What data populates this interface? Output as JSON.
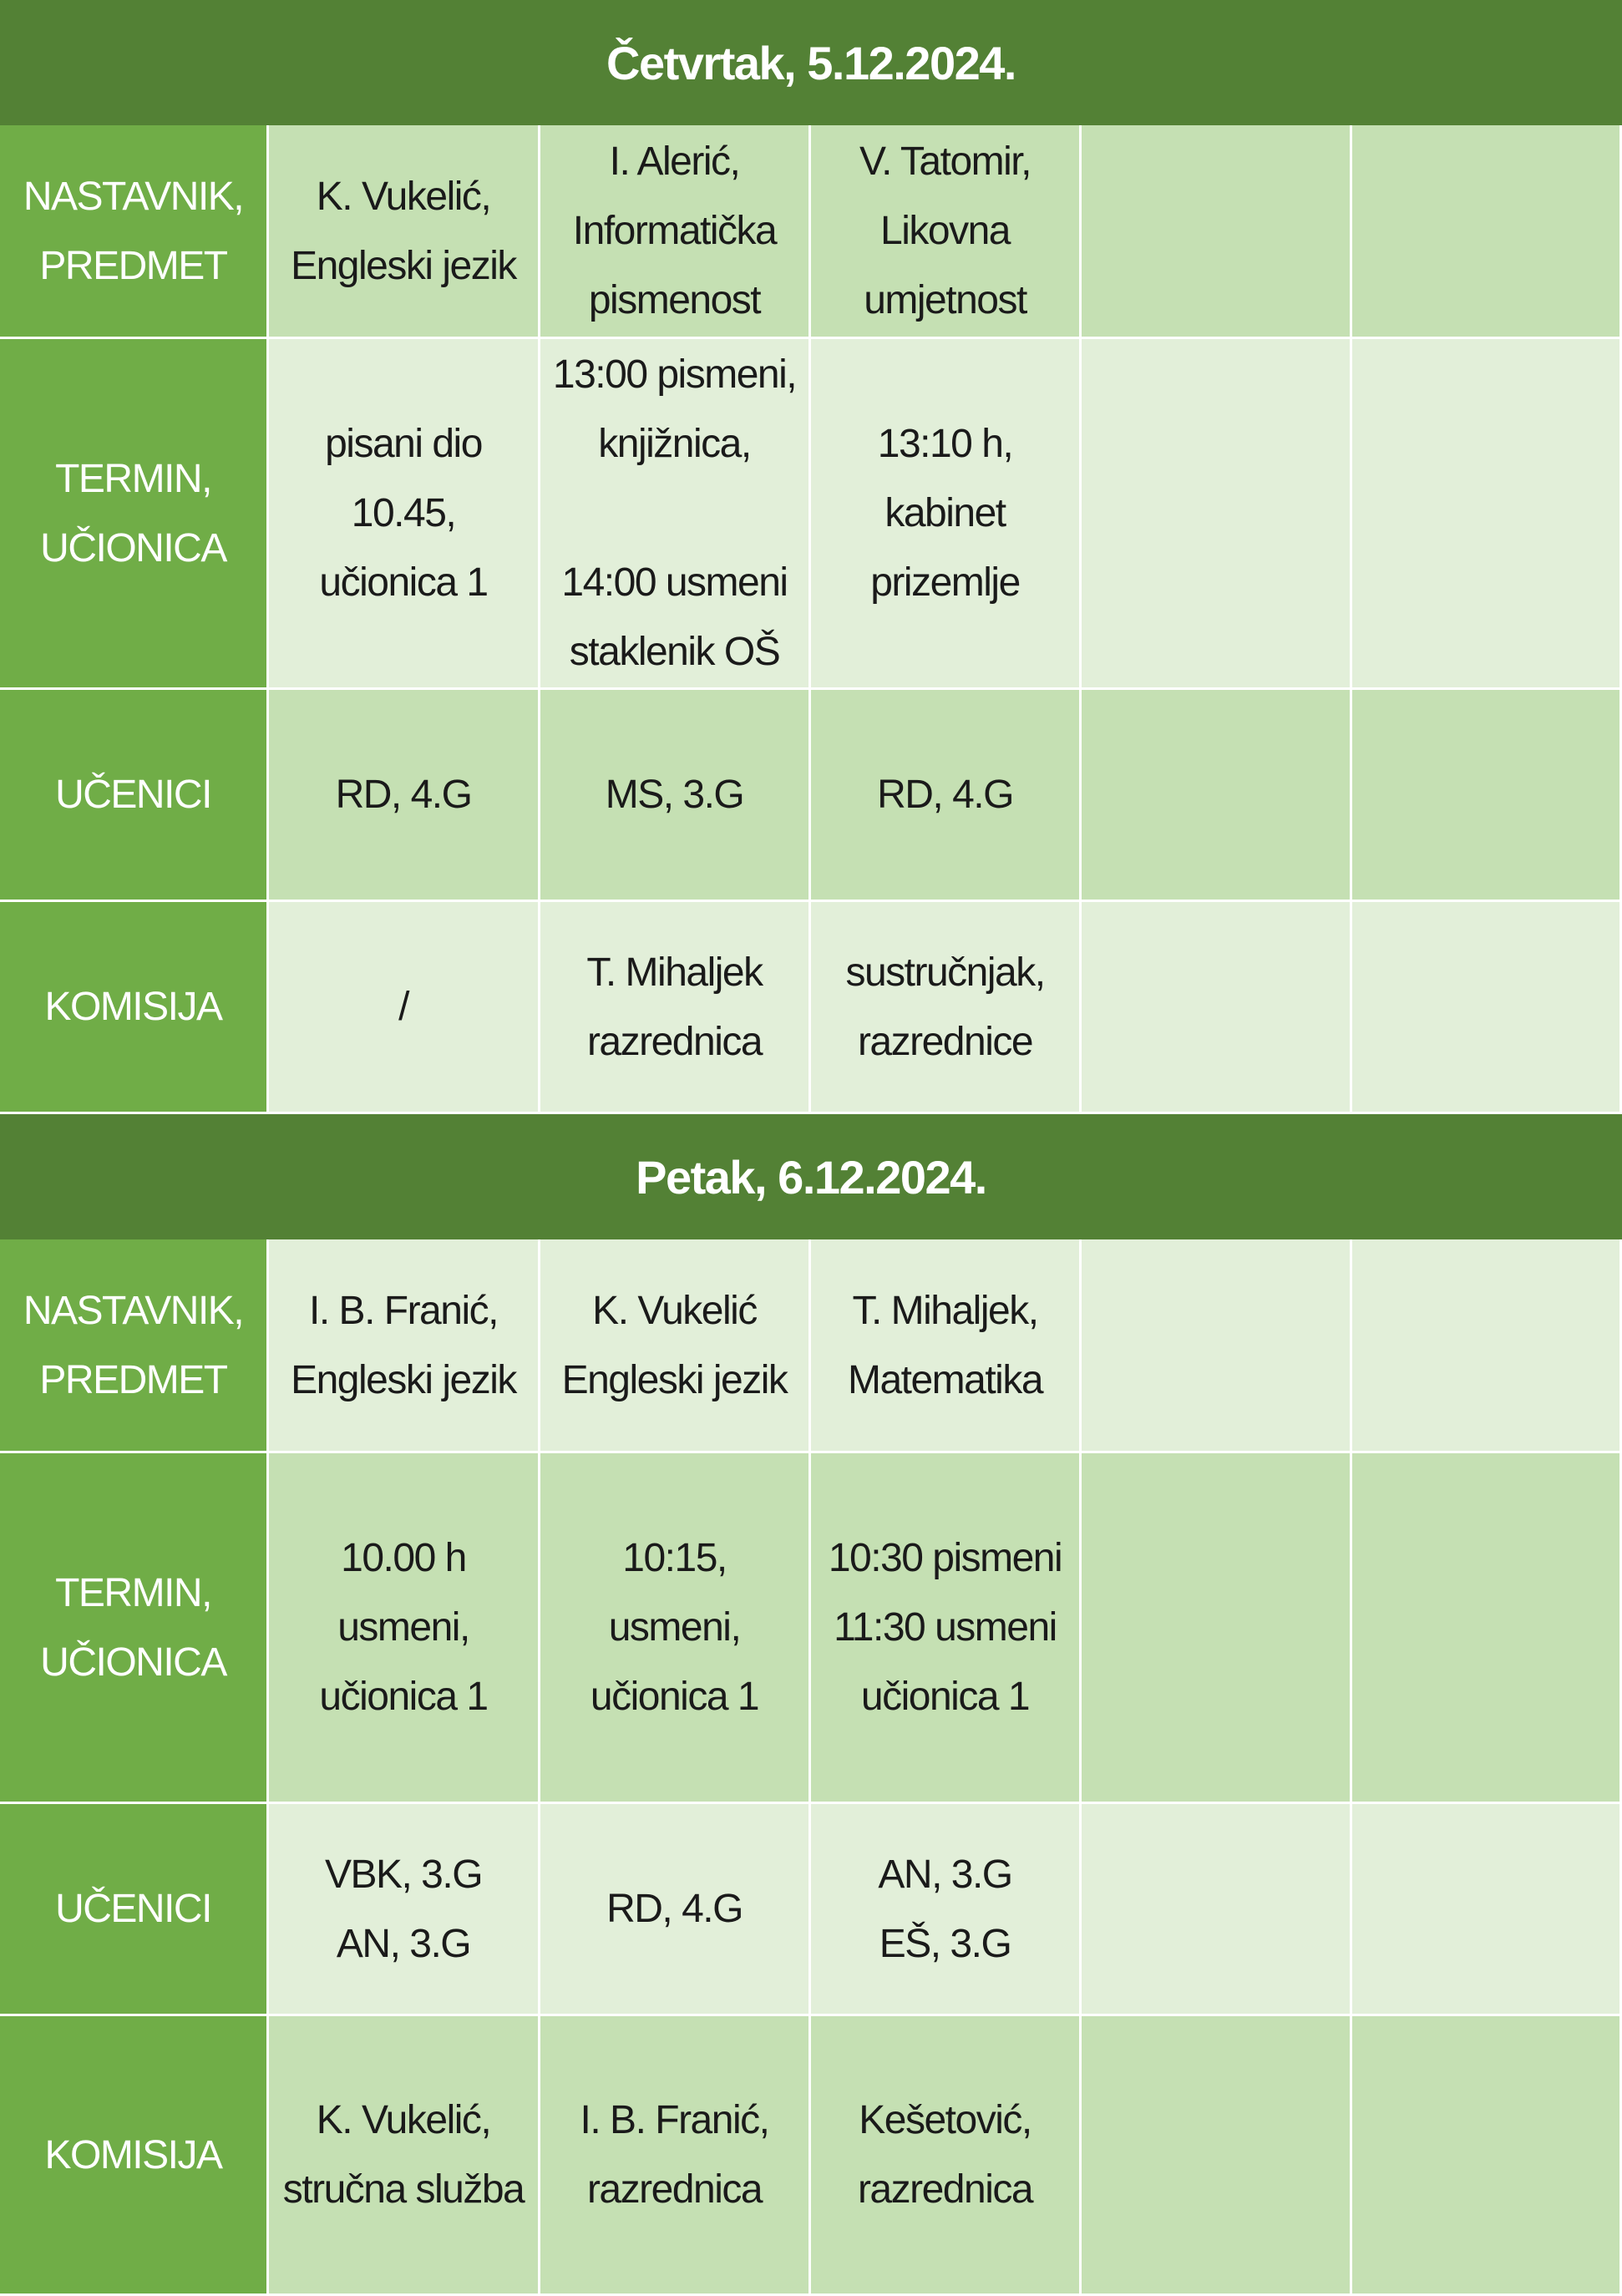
{
  "days": [
    {
      "title": "Četvrtak, 5.12.2024.",
      "rows": [
        {
          "label": "NASTAVNIK,\nPREDMET",
          "cells": [
            "K. Vukelić,\nEngleski jezik",
            "I. Alerić,\nInformatička\npismenost",
            "V. Tatomir,\nLikovna\numjetnost",
            "",
            ""
          ]
        },
        {
          "label": "TERMIN,\nUČIONICA",
          "cells": [
            "pisani dio\n10.45,\nučionica 1",
            "13:00 pismeni,\nknjižnica,\n\n14:00 usmeni\nstaklenik OŠ",
            "13:10 h,\nkabinet\nprizemlje",
            "",
            ""
          ]
        },
        {
          "label": "UČENICI",
          "cells": [
            "RD, 4.G",
            "MS, 3.G",
            "RD, 4.G",
            "",
            ""
          ]
        },
        {
          "label": "KOMISIJA",
          "cells": [
            "/",
            "T. Mihaljek\nrazrednica",
            "sustručnjak,\nrazrednice",
            "",
            ""
          ]
        }
      ]
    },
    {
      "title": "Petak, 6.12.2024.",
      "rows": [
        {
          "label": "NASTAVNIK,\nPREDMET",
          "cells": [
            "I. B. Franić,\nEngleski jezik",
            "K. Vukelić\nEngleski jezik",
            "T. Mihaljek,\nMatematika",
            "",
            ""
          ]
        },
        {
          "label": "TERMIN,\nUČIONICA",
          "cells": [
            "10.00 h\nusmeni,\nučionica 1",
            "10:15,\nusmeni,\nučionica 1",
            "10:30 pismeni\n11:30 usmeni\nučionica 1",
            "",
            ""
          ]
        },
        {
          "label": "UČENICI",
          "cells": [
            "VBK, 3.G\nAN, 3.G",
            "RD, 4.G",
            "AN, 3.G\nEŠ, 3.G",
            "",
            ""
          ]
        },
        {
          "label": "KOMISIJA",
          "cells": [
            "K. Vukelić,\nstručna služba",
            "I. B. Franić,\nrazrednica",
            "Kešetović,\nrazrednica",
            "",
            ""
          ]
        }
      ]
    }
  ]
}
